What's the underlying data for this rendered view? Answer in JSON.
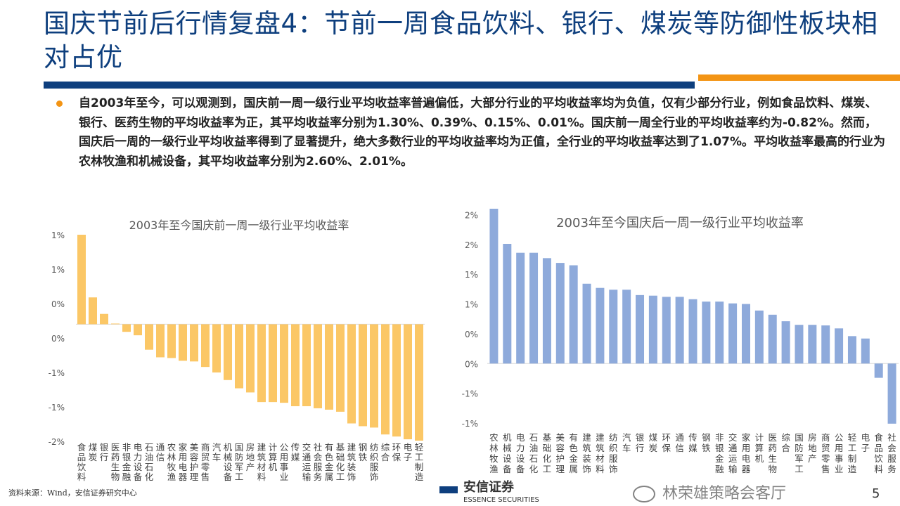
{
  "header": {
    "title": "国庆节前后行情复盘4：节前一周食品饮料、银行、煤炭等防御性板块相对占优"
  },
  "body": {
    "paragraph": "自2003年至今，可以观测到，国庆前一周一级行业平均收益率普遍偏低，大部分行业的平均收益率均为负值，仅有少部分行业，例如食品饮料、煤炭、银行、医药生物的平均收益率为正，其平均收益率分别为1.30%、0.39%、0.15%、0.01%。国庆前一周全行业的平均收益率约为-0.82%。然而，国庆后一周的一级行业平均收益率得到了显著提升，绝大多数行业的平均收益率均为正值，全行业的平均收益率达到了1.07%。平均收益率最高的行业为农林牧渔和机械设备，其平均收益率分别为2.60%、2.01%。"
  },
  "chart_data": [
    {
      "type": "bar",
      "title": "2003年至今国庆前一周一级行业平均收益率",
      "color": "#fbc766",
      "ylim": [
        -1.7,
        1.3
      ],
      "ytick_values": [
        1.3,
        0.8,
        0.3,
        -0.2,
        -0.7,
        -1.2,
        -1.7
      ],
      "ytick_labels": [
        "1%",
        "1%",
        "0%",
        "0%",
        "-1%",
        "-1%",
        "-2%"
      ],
      "grid": false,
      "categories": [
        "食品饮料",
        "煤炭",
        "银行",
        "医药生物",
        "非银金融",
        "电力设备",
        "石油石化",
        "通信",
        "农林牧渔",
        "家用电器",
        "美容护理",
        "商贸零售",
        "汽车",
        "机械设备",
        "国防军工",
        "房地产",
        "建筑材料",
        "计算机",
        "公用事业",
        "传媒",
        "交通运输",
        "社会服务",
        "有色金属",
        "基础化工",
        "建筑装饰",
        "钢铁",
        "纺织服饰",
        "综合",
        "环保",
        "电子",
        "轻工制造"
      ],
      "values": [
        1.3,
        0.39,
        0.15,
        0.01,
        -0.11,
        -0.16,
        -0.37,
        -0.48,
        -0.49,
        -0.53,
        -0.54,
        -0.62,
        -0.7,
        -0.81,
        -0.93,
        -0.99,
        -1.13,
        -1.13,
        -1.14,
        -1.19,
        -1.19,
        -1.22,
        -1.24,
        -1.27,
        -1.44,
        -1.48,
        -1.5,
        -1.6,
        -1.63,
        -1.67,
        -1.69
      ]
    },
    {
      "type": "bar",
      "title": "2003年至今国庆后一周一级行业平均收益率",
      "color": "#8eaadb",
      "ylim": [
        -1.0,
        2.6
      ],
      "ytick_values": [
        2.5,
        2.0,
        1.5,
        1.0,
        0.5,
        0,
        -0.5,
        -1.0
      ],
      "ytick_labels": [
        "2%",
        "2%",
        "1%",
        "1%",
        "0%",
        "0%",
        "-1%",
        "-1%"
      ],
      "grid": false,
      "categories": [
        "农林牧渔",
        "机械设备",
        "电力设备",
        "石油石化",
        "基础化工",
        "美容护理",
        "有色金属",
        "建筑装饰",
        "建筑材料",
        "纺织服饰",
        "汽车",
        "银行",
        "煤炭",
        "环保",
        "通信",
        "传媒",
        "钢铁",
        "非银金融",
        "交通运输",
        "家用电器",
        "计算机",
        "医药生物",
        "综合",
        "国防军工",
        "房地产",
        "商贸零售",
        "公用事业",
        "轻工制造",
        "电子",
        "食品饮料",
        "社会服务"
      ],
      "values": [
        2.6,
        2.01,
        1.86,
        1.86,
        1.77,
        1.69,
        1.65,
        1.34,
        1.27,
        1.24,
        1.24,
        1.15,
        1.14,
        1.12,
        1.12,
        1.08,
        1.04,
        1.04,
        1.01,
        1.0,
        0.89,
        0.82,
        0.71,
        0.65,
        0.65,
        0.64,
        0.59,
        0.46,
        0.42,
        -0.24,
        -1.01
      ]
    }
  ],
  "footer": {
    "source": "资料来源：Wind，安信证券研究中心",
    "logo_cn": "安信证券",
    "logo_en": "ESSENCE SECURITIES",
    "page_number": "5",
    "watermark": "林荣雄策略会客厅"
  }
}
